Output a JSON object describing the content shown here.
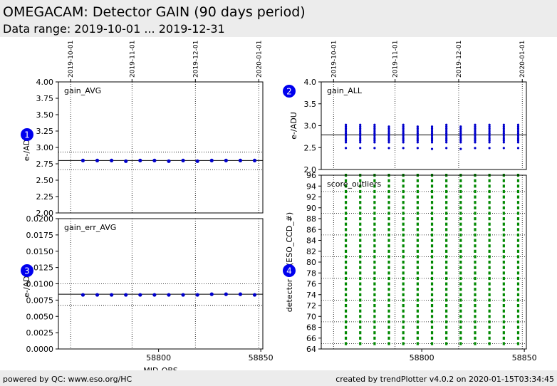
{
  "header": {
    "title": "OMEGACAM: Detector GAIN (90 days period)",
    "subtitle": "Data range: 2019-10-01 ... 2019-12-31"
  },
  "footer": {
    "left": "powered by QC: www.eso.org/HC",
    "right": "created by trendPlotter v4.0.2 on 2020-01-15T03:34:45"
  },
  "colors": {
    "blue_series": "#0000cc",
    "green_series": "#008800",
    "marker": "#0000ee"
  },
  "chart_data": [
    {
      "id": "gain_avg",
      "type": "scatter",
      "marker": "1",
      "label": "gain_AVG",
      "ylabel": "e-/ADU",
      "xlabel": "",
      "xlim": [
        58751,
        58851
      ],
      "ylim": [
        2.0,
        4.0
      ],
      "yticks": [
        "2.00",
        "2.25",
        "2.50",
        "2.75",
        "3.00",
        "3.25",
        "3.50",
        "3.75",
        "4.00"
      ],
      "xticks": [],
      "date_ticks": [
        {
          "x": 58757,
          "label": "2019-10-01"
        },
        {
          "x": 58787,
          "label": "2019-11-01"
        },
        {
          "x": 58818,
          "label": "2019-12-01"
        },
        {
          "x": 58849,
          "label": "2020-01-01"
        }
      ],
      "hlines": [
        {
          "y": 2.8,
          "style": "solid"
        },
        {
          "y": 2.93,
          "style": "dotted"
        },
        {
          "y": 2.66,
          "style": "dotted"
        }
      ],
      "x": [
        58763,
        58770,
        58777,
        58784,
        58791,
        58798,
        58805,
        58812,
        58819,
        58826,
        58833,
        58840,
        58847
      ],
      "y": [
        2.8,
        2.8,
        2.8,
        2.79,
        2.8,
        2.8,
        2.79,
        2.8,
        2.79,
        2.8,
        2.8,
        2.8,
        2.8
      ]
    },
    {
      "id": "gain_err_avg",
      "type": "scatter",
      "marker": "3",
      "label": "gain_err_AVG",
      "ylabel": "e-/ADU",
      "xlabel": "MJD-OBS",
      "xlim": [
        58751,
        58851
      ],
      "ylim": [
        0.0,
        0.02
      ],
      "yticks": [
        "0.0000",
        "0.0025",
        "0.0050",
        "0.0075",
        "0.0100",
        "0.0125",
        "0.0150",
        "0.0175",
        "0.0200"
      ],
      "xticks": [
        {
          "x": 58800,
          "label": "58800"
        },
        {
          "x": 58850,
          "label": "58850"
        }
      ],
      "hlines": [
        {
          "y": 0.0084,
          "style": "solid"
        },
        {
          "y": 0.01,
          "style": "dotted"
        },
        {
          "y": 0.0067,
          "style": "dotted"
        }
      ],
      "x": [
        58763,
        58770,
        58777,
        58784,
        58791,
        58798,
        58805,
        58812,
        58819,
        58826,
        58833,
        58840,
        58847
      ],
      "y": [
        0.0083,
        0.0083,
        0.0083,
        0.0083,
        0.0083,
        0.0083,
        0.0083,
        0.0083,
        0.0083,
        0.0084,
        0.0084,
        0.0084,
        0.0083
      ]
    },
    {
      "id": "gain_all",
      "type": "scatter",
      "marker": "2",
      "label": "gain_ALL",
      "ylabel": "e-/ADU",
      "xlabel": "",
      "xlim": [
        58751,
        58851
      ],
      "ylim": [
        2.0,
        4.0
      ],
      "yticks": [
        "2.0",
        "2.5",
        "3.0",
        "3.5",
        "4.0"
      ],
      "xticks": [],
      "date_ticks": [
        {
          "x": 58757,
          "label": "2019-10-01"
        },
        {
          "x": 58787,
          "label": "2019-11-01"
        },
        {
          "x": 58818,
          "label": "2019-12-01"
        },
        {
          "x": 58849,
          "label": "2020-01-01"
        }
      ],
      "hlines": [
        {
          "y": 2.79,
          "style": "solid"
        }
      ],
      "x": [
        58763,
        58770,
        58777,
        58784,
        58791,
        58798,
        58805,
        58812,
        58819,
        58826,
        58833,
        58840,
        58847
      ],
      "y_range": [
        [
          2.62,
          3.02
        ],
        [
          2.62,
          3.02
        ],
        [
          2.62,
          3.02
        ],
        [
          2.62,
          3.0
        ],
        [
          2.62,
          3.02
        ],
        [
          2.62,
          3.0
        ],
        [
          2.62,
          3.0
        ],
        [
          2.62,
          3.02
        ],
        [
          2.62,
          3.0
        ],
        [
          2.62,
          3.03
        ],
        [
          2.62,
          3.02
        ],
        [
          2.62,
          3.02
        ],
        [
          2.62,
          3.02
        ]
      ],
      "y_low": [
        2.49,
        2.49,
        2.49,
        2.49,
        2.49,
        2.49,
        2.47,
        2.49,
        2.47,
        2.49,
        2.49,
        2.49,
        2.49
      ]
    },
    {
      "id": "score_outliers",
      "type": "scatter",
      "marker": "4",
      "label": "score_outliers",
      "ylabel": "detector ID (ESO_CCD_#)",
      "xlabel": "",
      "xlim": [
        58751,
        58851
      ],
      "ylim": [
        64,
        96
      ],
      "yticks": [
        "64",
        "66",
        "68",
        "70",
        "72",
        "74",
        "76",
        "78",
        "80",
        "82",
        "84",
        "86",
        "88",
        "90",
        "92",
        "94",
        "96"
      ],
      "xticks": [
        {
          "x": 58800,
          "label": "58800"
        },
        {
          "x": 58850,
          "label": "58850"
        }
      ],
      "hlines_dotted": [
        65,
        69,
        73,
        77,
        81,
        85,
        89,
        93
      ],
      "x": [
        58763,
        58770,
        58777,
        58784,
        58791,
        58798,
        58805,
        58812,
        58819,
        58826,
        58833,
        58840,
        58847
      ],
      "detectors": [
        65,
        96
      ]
    }
  ]
}
